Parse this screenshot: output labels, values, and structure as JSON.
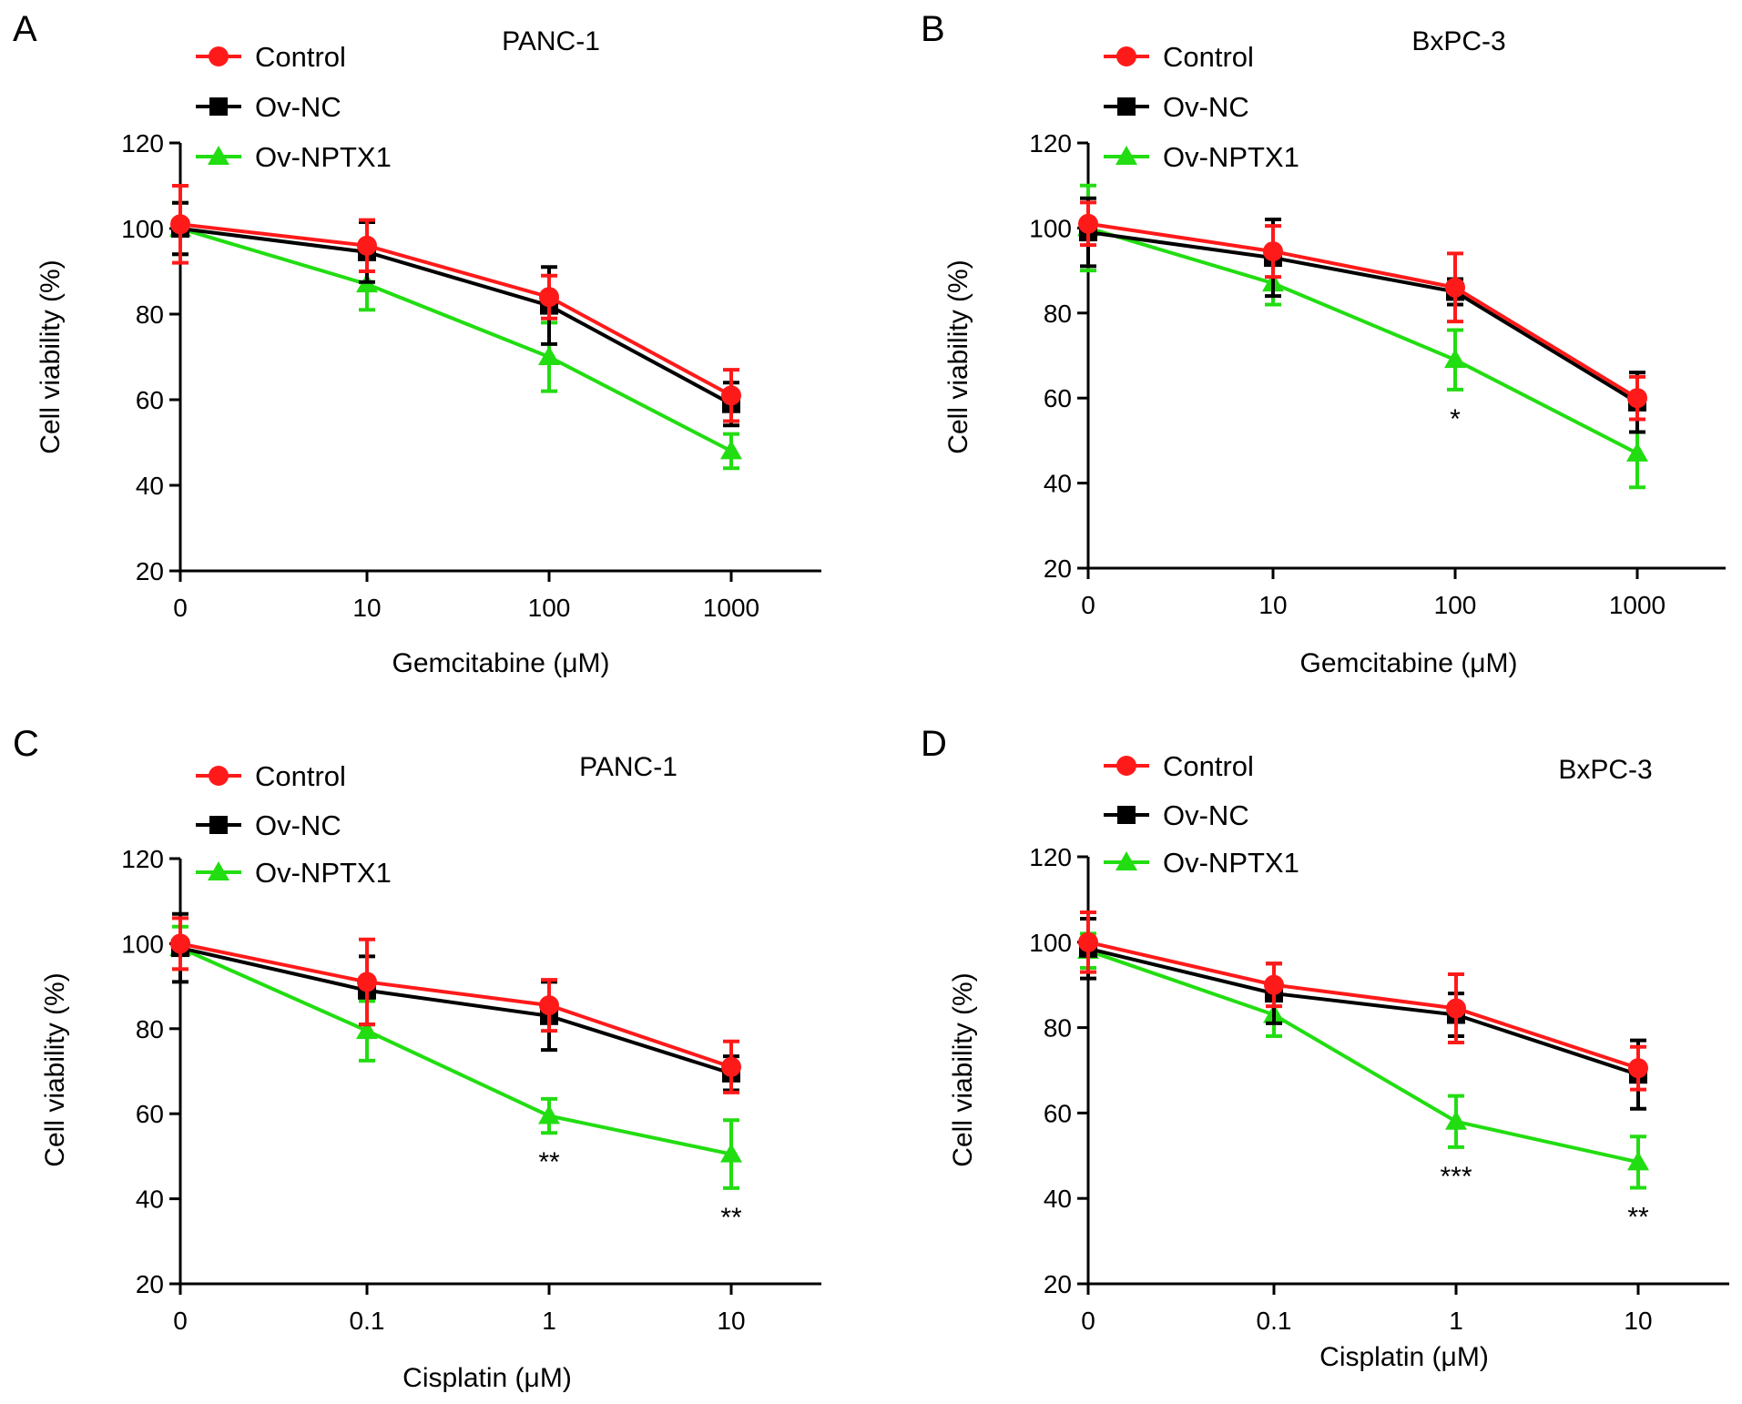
{
  "figure": {
    "panel_count": 4
  },
  "chart_data": [
    {
      "panel": "A",
      "type": "line",
      "title": "PANC-1",
      "xlabel": "Gemcitabine (μM)",
      "ylabel": "Cell viability (%)",
      "categories": [
        "0",
        "10",
        "100",
        "1000"
      ],
      "yticks": [
        "20",
        "40",
        "60",
        "80",
        "100",
        "120"
      ],
      "ylim": [
        20,
        120
      ],
      "grid": false,
      "legend_position": "top-left",
      "series": [
        {
          "name": "Control",
          "color": "#ff1a1a",
          "marker": "circle",
          "values": [
            101,
            96,
            84,
            61
          ],
          "errors": [
            9,
            6,
            5,
            6
          ]
        },
        {
          "name": "Ov-NC",
          "color": "#000000",
          "marker": "square",
          "values": [
            100,
            94.5,
            82,
            59
          ],
          "errors": [
            6,
            7,
            9,
            5
          ]
        },
        {
          "name": "Ov-NPTX1",
          "color": "#22dd11",
          "marker": "triangle",
          "values": [
            100,
            87,
            70,
            48
          ],
          "errors": [
            6,
            6,
            8,
            4
          ]
        }
      ],
      "annotations": []
    },
    {
      "panel": "B",
      "type": "line",
      "title": "BxPC-3",
      "xlabel": "Gemcitabine (μM)",
      "ylabel": "Cell viability (%)",
      "categories": [
        "0",
        "10",
        "100",
        "1000"
      ],
      "yticks": [
        "20",
        "40",
        "60",
        "80",
        "100",
        "120"
      ],
      "ylim": [
        20,
        120
      ],
      "grid": false,
      "legend_position": "top-left",
      "series": [
        {
          "name": "Control",
          "color": "#ff1a1a",
          "marker": "circle",
          "values": [
            101,
            94.5,
            86,
            60
          ],
          "errors": [
            5,
            6,
            8,
            5
          ]
        },
        {
          "name": "Ov-NC",
          "color": "#000000",
          "marker": "square",
          "values": [
            99,
            93,
            85,
            59
          ],
          "errors": [
            8,
            9,
            3,
            7
          ]
        },
        {
          "name": "Ov-NPTX1",
          "color": "#22dd11",
          "marker": "triangle",
          "values": [
            100,
            87,
            69,
            47
          ],
          "errors": [
            10,
            5,
            7,
            8
          ]
        }
      ],
      "annotations": [
        {
          "category": "100",
          "text": "*"
        }
      ]
    },
    {
      "panel": "C",
      "type": "line",
      "title": "PANC-1",
      "xlabel": "Cisplatin (μM)",
      "ylabel": "Cell viability (%)",
      "categories": [
        "0",
        "0.1",
        "1",
        "10"
      ],
      "yticks": [
        "20",
        "40",
        "60",
        "80",
        "100",
        "120"
      ],
      "ylim": [
        20,
        120
      ],
      "grid": false,
      "legend_position": "top-left",
      "series": [
        {
          "name": "Control",
          "color": "#ff1a1a",
          "marker": "circle",
          "values": [
            100,
            91,
            85.5,
            71
          ],
          "errors": [
            6,
            10,
            6,
            6
          ]
        },
        {
          "name": "Ov-NC",
          "color": "#000000",
          "marker": "square",
          "values": [
            99,
            89,
            83,
            69.5
          ],
          "errors": [
            8,
            8,
            8,
            4
          ]
        },
        {
          "name": "Ov-NPTX1",
          "color": "#22dd11",
          "marker": "triangle",
          "values": [
            99,
            79.5,
            59.5,
            50.5
          ],
          "errors": [
            5,
            7,
            4,
            8
          ]
        }
      ],
      "annotations": [
        {
          "category": "1",
          "text": "**"
        },
        {
          "category": "10",
          "text": "**"
        }
      ]
    },
    {
      "panel": "D",
      "type": "line",
      "title": "BxPC-3",
      "xlabel": "Cisplatin (μM)",
      "ylabel": "Cell viability (%)",
      "categories": [
        "0",
        "0.1",
        "1",
        "10"
      ],
      "yticks": [
        "20",
        "40",
        "60",
        "80",
        "100",
        "120"
      ],
      "ylim": [
        20,
        120
      ],
      "grid": false,
      "legend_position": "top-left",
      "series": [
        {
          "name": "Control",
          "color": "#ff1a1a",
          "marker": "circle",
          "values": [
            100,
            90,
            84.5,
            70.5
          ],
          "errors": [
            7,
            5,
            8,
            5
          ]
        },
        {
          "name": "Ov-NC",
          "color": "#000000",
          "marker": "square",
          "values": [
            98.5,
            88,
            83,
            69
          ],
          "errors": [
            7,
            7,
            5,
            8
          ]
        },
        {
          "name": "Ov-NPTX1",
          "color": "#22dd11",
          "marker": "triangle",
          "values": [
            98,
            83,
            58,
            48.5
          ],
          "errors": [
            4,
            5,
            6,
            6
          ]
        }
      ],
      "annotations": [
        {
          "category": "1",
          "text": "***"
        },
        {
          "category": "10",
          "text": "**"
        }
      ]
    }
  ]
}
